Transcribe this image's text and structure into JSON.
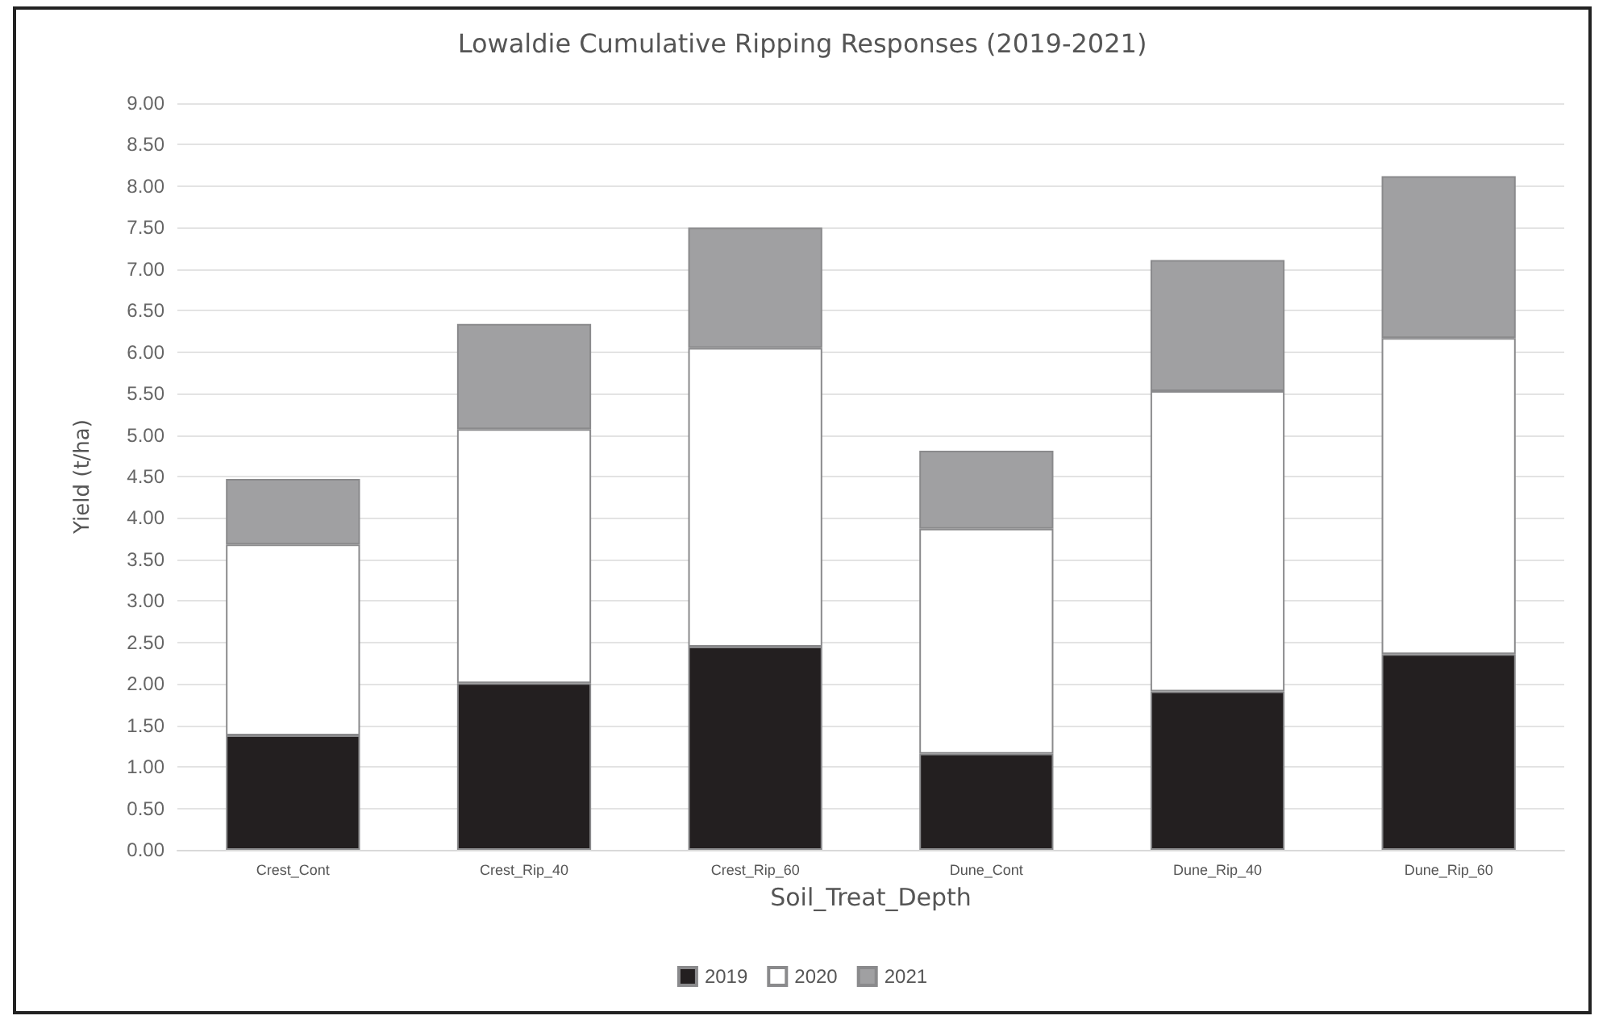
{
  "chart_data": {
    "type": "bar",
    "title": "Lowaldie Cumulative Ripping Responses (2019-2021)",
    "xlabel": "Soil_Treat_Depth",
    "ylabel": "Yield (t/ha)",
    "categories": [
      "Crest_Cont",
      "Crest_Rip_40",
      "Crest_Rip_60",
      "Dune_Cont",
      "Dune_Rip_40",
      "Dune_Rip_60"
    ],
    "stacked": true,
    "series": [
      {
        "name": "2019",
        "color": "#231f20",
        "values": [
          1.38,
          2.01,
          2.45,
          1.16,
          1.91,
          2.36
        ]
      },
      {
        "name": "2020",
        "color": "#ffffff",
        "values": [
          2.3,
          3.06,
          3.6,
          2.71,
          3.62,
          3.81
        ]
      },
      {
        "name": "2021",
        "color": "#a0a0a2",
        "values": [
          0.79,
          1.27,
          1.45,
          0.94,
          1.58,
          1.95
        ]
      }
    ],
    "ylim": [
      0,
      9
    ],
    "yticks": [
      {
        "value": 0,
        "label": "0.00"
      },
      {
        "value": 0.5,
        "label": "0.50"
      },
      {
        "value": 1,
        "label": "1.00"
      },
      {
        "value": 1.5,
        "label": "1.50"
      },
      {
        "value": 2,
        "label": "2.00"
      },
      {
        "value": 2.5,
        "label": "2.50"
      },
      {
        "value": 3,
        "label": "3.00"
      },
      {
        "value": 3.5,
        "label": "3.50"
      },
      {
        "value": 4,
        "label": "4.00"
      },
      {
        "value": 4.5,
        "label": "4.50"
      },
      {
        "value": 5,
        "label": "5.00"
      },
      {
        "value": 5.5,
        "label": "5.50"
      },
      {
        "value": 6,
        "label": "6.00"
      },
      {
        "value": 6.5,
        "label": "6.50"
      },
      {
        "value": 7,
        "label": "7.00"
      },
      {
        "value": 7.5,
        "label": "7.50"
      },
      {
        "value": 8,
        "label": "8.00"
      },
      {
        "value": 8.5,
        "label": "8.50"
      },
      {
        "value": 9,
        "label": "9.00"
      }
    ],
    "grid": "y",
    "legend": "bottom"
  }
}
